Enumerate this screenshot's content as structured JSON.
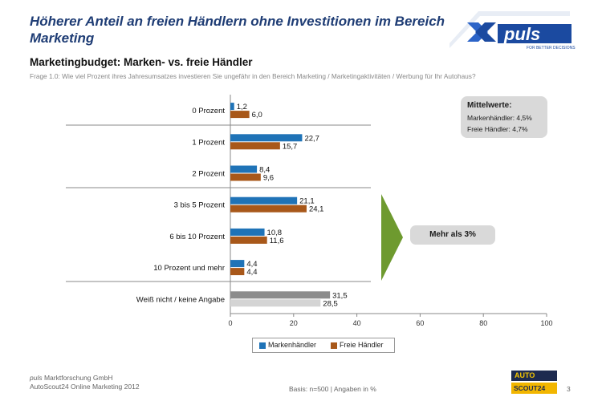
{
  "header": {
    "title": "Höherer Anteil an freien Händlern ohne Investitionen im Bereich Marketing",
    "subtitle": "Marketingbudget: Marken- vs. freie Händler",
    "question": "Frage 1.0: Wie viel Prozent ihres Jahresumsatzes investieren Sie ungefähr in den Bereich Marketing / Marketingaktivitäten / Werbung für Ihr Autohaus?"
  },
  "logo": {
    "name": "puls",
    "tagline": "FOR BETTER DECISIONS"
  },
  "mittelwerte": {
    "title": "Mittelwerte:",
    "line1": "Markenhändler: 4,5%",
    "line2": "Freie Händler: 4,7%"
  },
  "callout": {
    "label": "Mehr als 3%"
  },
  "colors": {
    "markenhaendler": "#1f73b7",
    "freie_haendler": "#a8581a",
    "unknown1": "#8c8c8c",
    "unknown2": "#d4d4d4",
    "arrow": "#6e9a2f"
  },
  "chart_data": {
    "type": "bar",
    "orientation": "horizontal",
    "categories": [
      "0 Prozent",
      "1 Prozent",
      "2 Prozent",
      "3 bis 5 Prozent",
      "6 bis 10 Prozent",
      "10 Prozent und mehr",
      "Weiß nicht / keine Angabe"
    ],
    "series": [
      {
        "name": "Markenhändler",
        "values": [
          1.2,
          22.7,
          8.4,
          21.1,
          10.8,
          4.4,
          31.5
        ],
        "labels": [
          "1,2",
          "22,7",
          "8,4",
          "21,1",
          "10,8",
          "4,4",
          "31,5"
        ]
      },
      {
        "name": "Freie Händler",
        "values": [
          6.0,
          15.7,
          9.6,
          24.1,
          11.6,
          4.4,
          28.5
        ],
        "labels": [
          "6,0",
          "15,7",
          "9,6",
          "24,1",
          "11,6",
          "4,4",
          "28,5"
        ]
      }
    ],
    "xlim": [
      0,
      100
    ],
    "xticks": [
      "0",
      "20",
      "40",
      "60",
      "80",
      "100"
    ],
    "legend_position": "bottom",
    "grid": false
  },
  "footer": {
    "company_brand": "puls",
    "company_rest": " Marktforschung GmbH",
    "study": "AutoScout24 Online Marketing 2012",
    "base": "Basis: n=500 | Angaben in %",
    "page": "3"
  },
  "autoscout": {
    "top": "AUTO",
    "bottom": "SCOUT24"
  }
}
